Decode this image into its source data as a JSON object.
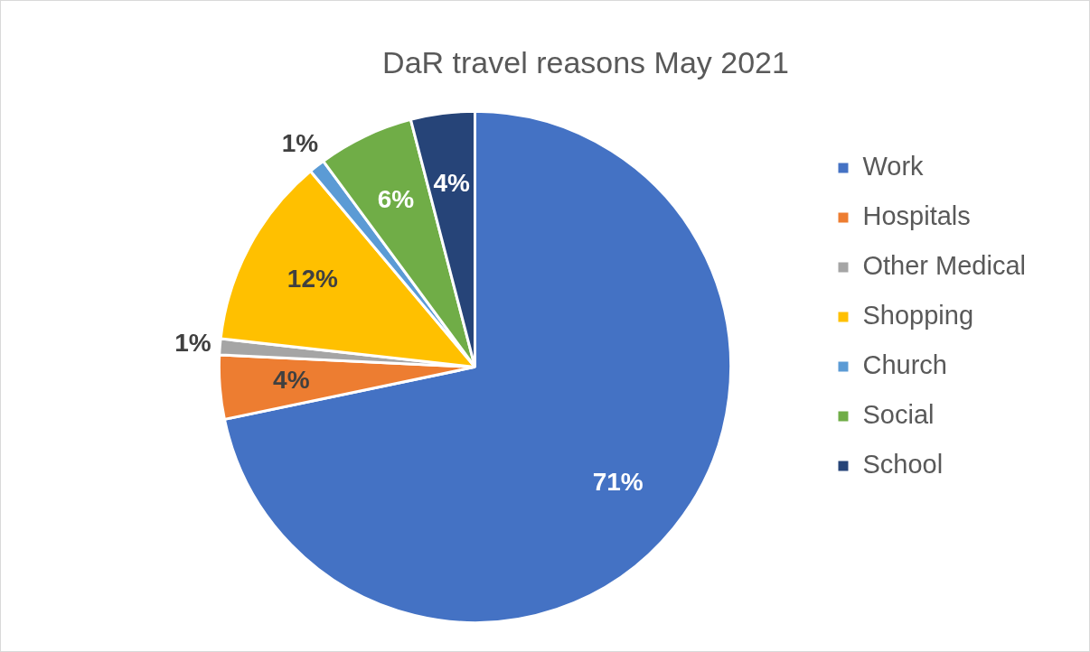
{
  "chart_data": {
    "type": "pie",
    "title": "DaR travel reasons May 2021",
    "categories": [
      "Work",
      "Hospitals",
      "Other Medical",
      "Shopping",
      "Church",
      "Social",
      "School"
    ],
    "values": [
      71,
      4,
      1,
      12,
      1,
      6,
      4
    ],
    "colors": [
      "#4472c4",
      "#ed7d31",
      "#a5a5a5",
      "#ffc000",
      "#5b9bd5",
      "#70ad47",
      "#264478"
    ],
    "value_labels": [
      "71%",
      "4%",
      "1%",
      "12%",
      "1%",
      "6%",
      "4%"
    ],
    "legend": "right"
  }
}
